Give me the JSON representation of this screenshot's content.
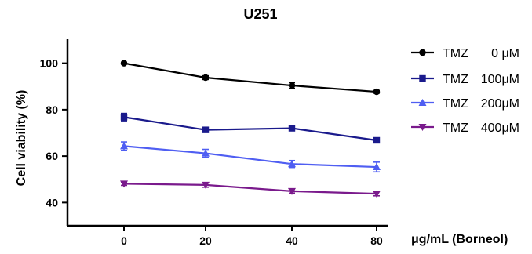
{
  "chart_data": {
    "type": "line",
    "title": "U251",
    "xlabel": "μg/mL (Borneol)",
    "ylabel": "Cell viability (%)",
    "x": [
      0,
      20,
      40,
      80
    ],
    "x_tick_labels": [
      "0",
      "20",
      "40",
      "80"
    ],
    "y_ticks": [
      40,
      60,
      80,
      100
    ],
    "ylim": [
      30,
      110
    ],
    "grid": false,
    "legend_position": "right",
    "series": [
      {
        "name": "TMZ",
        "dose": "0 μM",
        "color": "#000000",
        "marker": "circle",
        "values": [
          100,
          93.8,
          90.4,
          87.7
        ],
        "errors": [
          0.4,
          0.8,
          1.2,
          0.6
        ]
      },
      {
        "name": "TMZ",
        "dose": "100μM",
        "color": "#1a1a8c",
        "marker": "square",
        "values": [
          76.8,
          71.3,
          72.0,
          66.8
        ],
        "errors": [
          1.6,
          0.8,
          1.0,
          0.7
        ]
      },
      {
        "name": "TMZ",
        "dose": "200μM",
        "color": "#4f5ef2",
        "marker": "triangle-up",
        "values": [
          64.3,
          61.2,
          56.6,
          55.3
        ],
        "errors": [
          1.8,
          1.7,
          1.5,
          2.1
        ]
      },
      {
        "name": "TMZ",
        "dose": "400μM",
        "color": "#7a1a8c",
        "marker": "triangle-down",
        "values": [
          48.1,
          47.6,
          44.9,
          43.8
        ],
        "errors": [
          0.7,
          1.0,
          0.8,
          0.9
        ]
      }
    ]
  }
}
